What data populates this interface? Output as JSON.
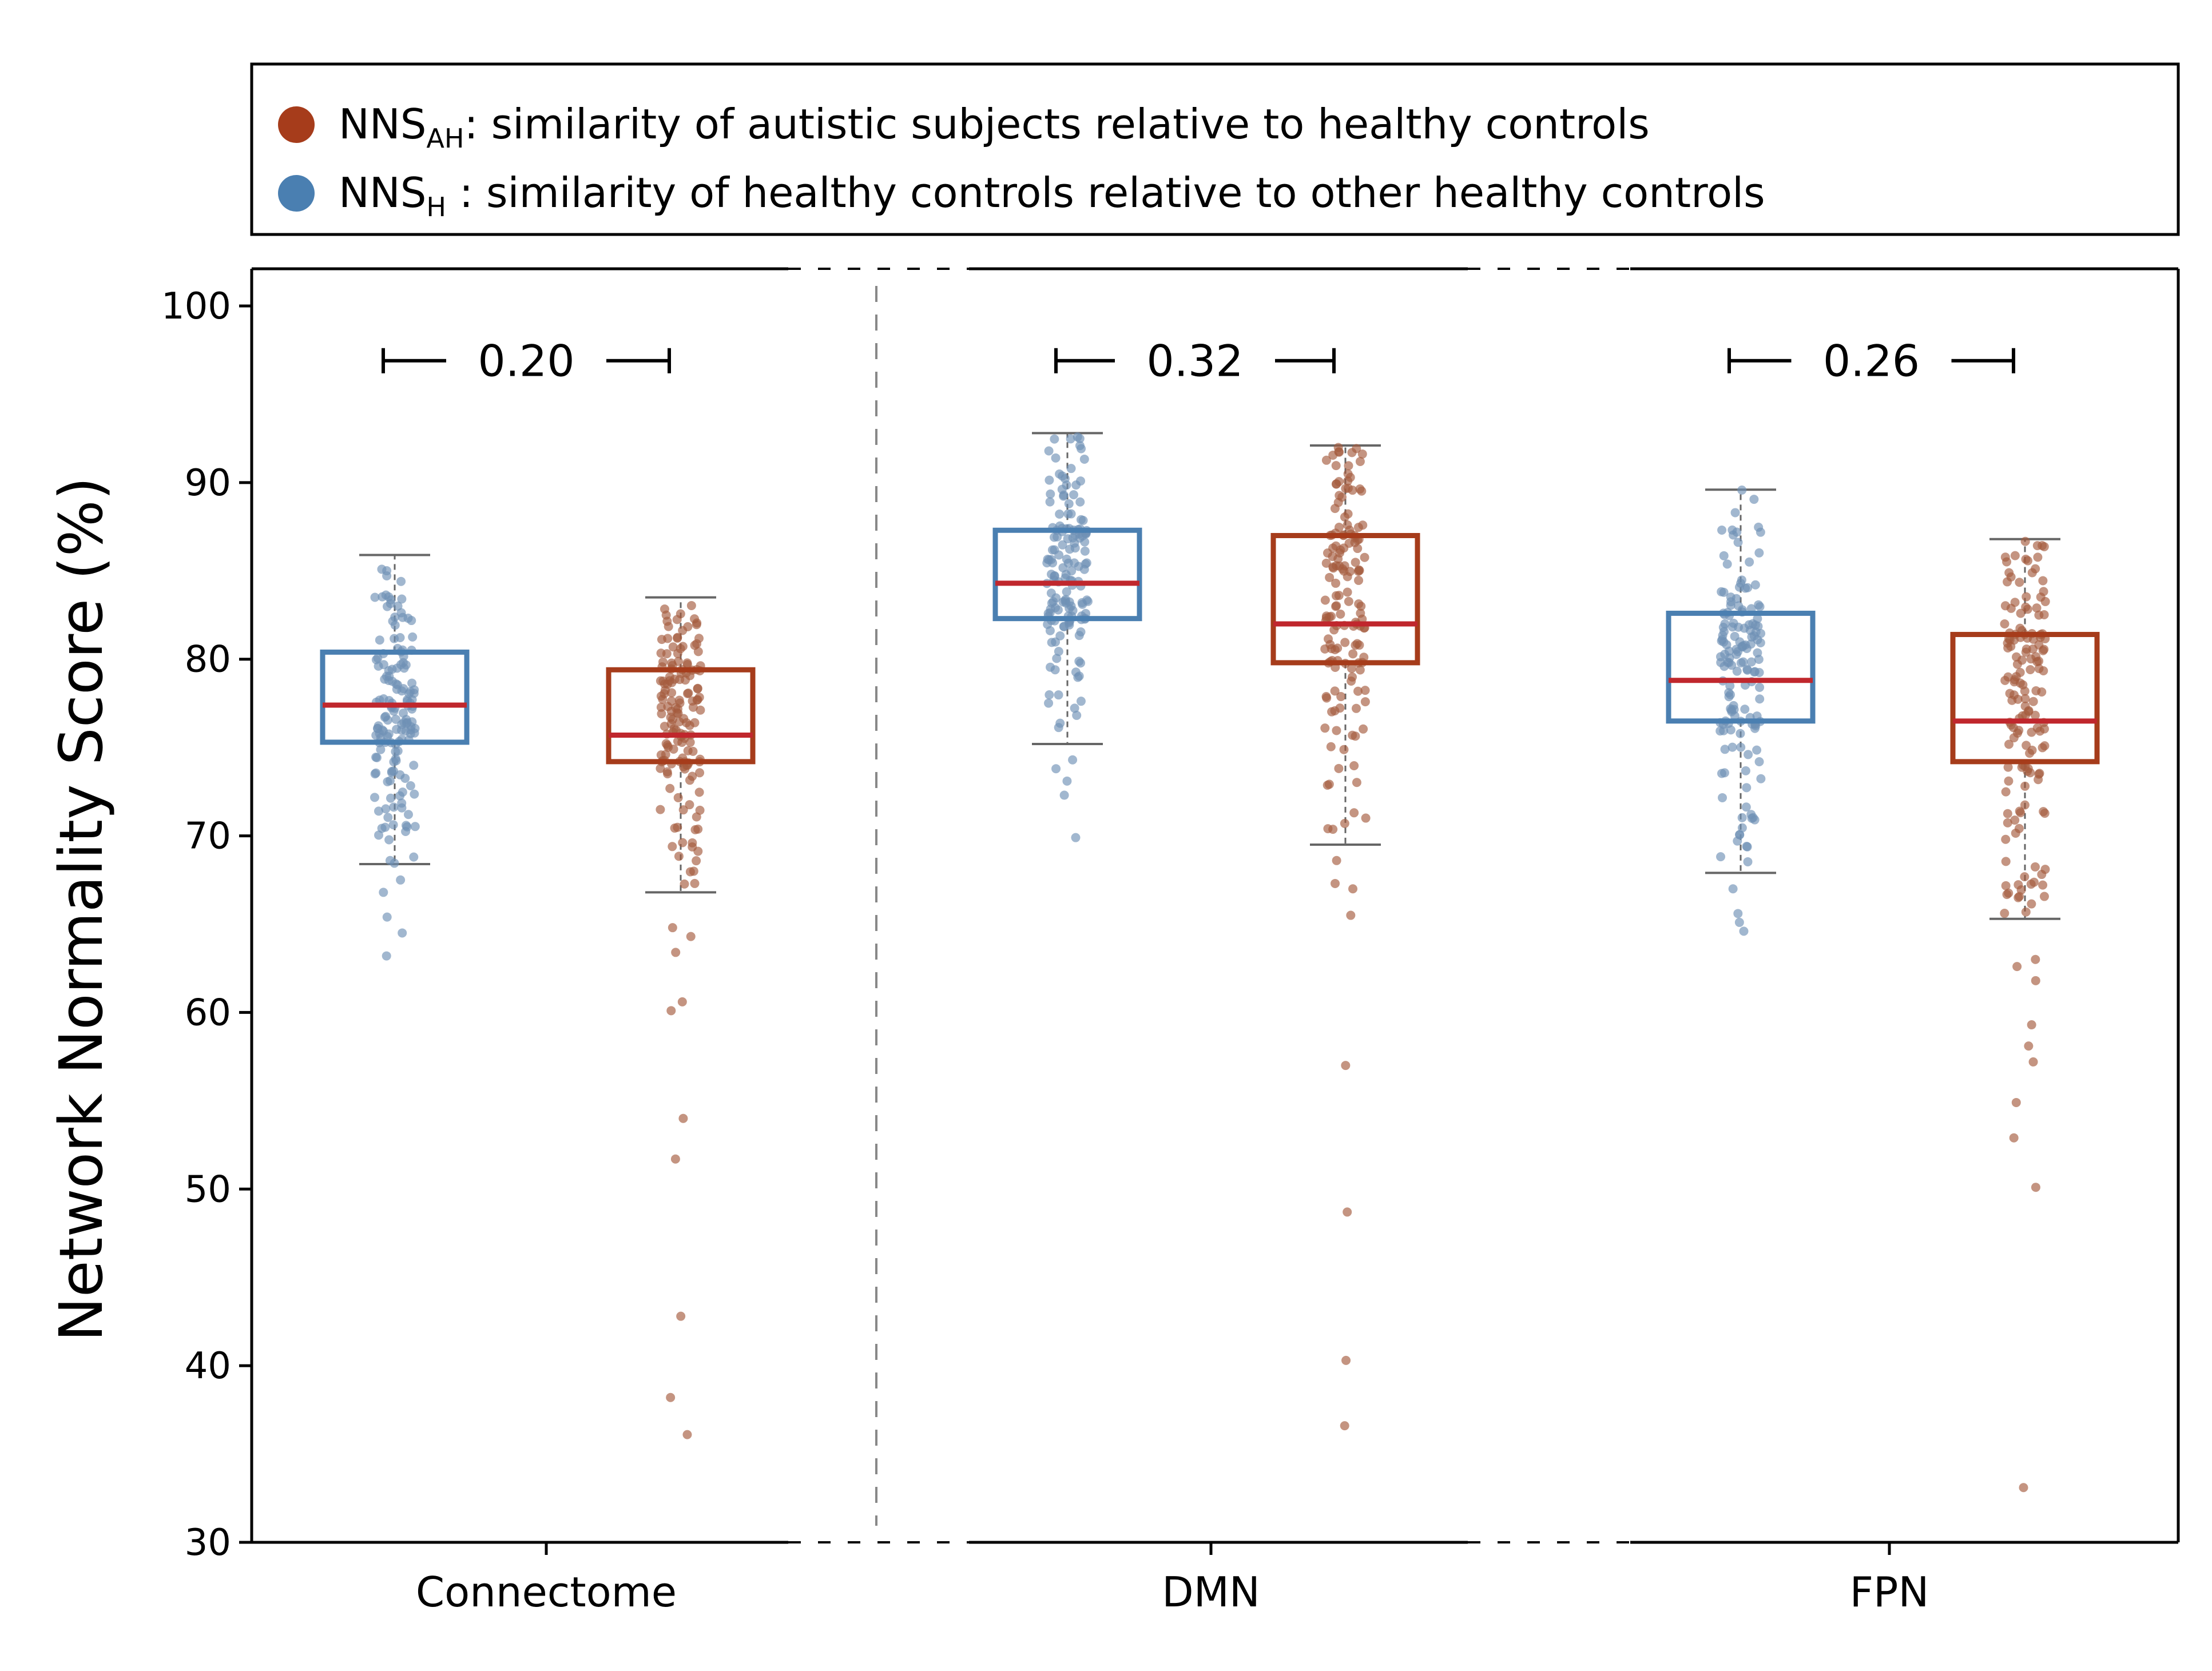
{
  "chart_data": {
    "type": "box",
    "ylabel": "Network Normality Score (%)",
    "xlabel": "",
    "ylim": [
      30,
      102
    ],
    "yticks": [
      30,
      40,
      50,
      60,
      70,
      80,
      90,
      100
    ],
    "categories": [
      "Connectome",
      "DMN",
      "FPN"
    ],
    "legend": {
      "placement": "top",
      "entries": [
        {
          "key": "AH",
          "prefix": "NNS",
          "sub": "AH",
          "text": ": similarity of autistic subjects relative to healthy controls",
          "color": "#a63c1b"
        },
        {
          "key": "H",
          "prefix": "NNS",
          "sub": "H",
          "text": " : similarity of healthy controls relative to other healthy controls",
          "color": "#4a7fb1"
        }
      ]
    },
    "colors": {
      "H": "#4a7fb1",
      "AH": "#a63c1b",
      "median": "#c0272d",
      "H_points": "#6e91b5",
      "AH_points": "#a45a3e"
    },
    "groups": [
      {
        "category": "Connectome",
        "gap_label": "0.20",
        "H": {
          "whislo": 68.4,
          "q1": 75.3,
          "median": 77.4,
          "q3": 80.4,
          "whishi": 85.9,
          "outliers": [
            63.2,
            64.5,
            65.4,
            66.8,
            67.5,
            68.6
          ]
        },
        "AH": {
          "whislo": 66.8,
          "q1": 74.2,
          "median": 75.7,
          "q3": 79.4,
          "whishi": 83.5,
          "outliers": [
            36.1,
            38.2,
            42.8,
            51.7,
            54.0,
            60.1,
            60.6,
            63.4,
            64.3,
            64.8
          ]
        }
      },
      {
        "category": "DMN",
        "gap_label": "0.32",
        "H": {
          "whislo": 75.2,
          "q1": 82.3,
          "median": 84.3,
          "q3": 87.3,
          "whishi": 92.8,
          "outliers": [
            69.9,
            72.3,
            73.1,
            73.8,
            74.3
          ]
        },
        "AH": {
          "whislo": 69.5,
          "q1": 79.8,
          "median": 82.0,
          "q3": 87.0,
          "whishi": 92.1,
          "outliers": [
            36.6,
            40.3,
            48.7,
            57.0,
            65.5,
            67.0,
            67.3,
            68.6
          ]
        },
        "placeholder": ""
      },
      {
        "category": "FPN",
        "gap_label": "0.26",
        "H": {
          "whislo": 67.9,
          "q1": 76.5,
          "median": 78.8,
          "q3": 82.6,
          "whishi": 89.6,
          "outliers": [
            64.6,
            65.1,
            65.6,
            67.0
          ]
        },
        "AH": {
          "whislo": 65.3,
          "q1": 74.2,
          "median": 76.5,
          "q3": 81.4,
          "whishi": 86.8,
          "outliers": [
            33.1,
            50.1,
            52.9,
            54.9,
            57.2,
            58.1,
            59.3,
            61.8,
            62.6,
            63.0
          ]
        }
      }
    ]
  }
}
